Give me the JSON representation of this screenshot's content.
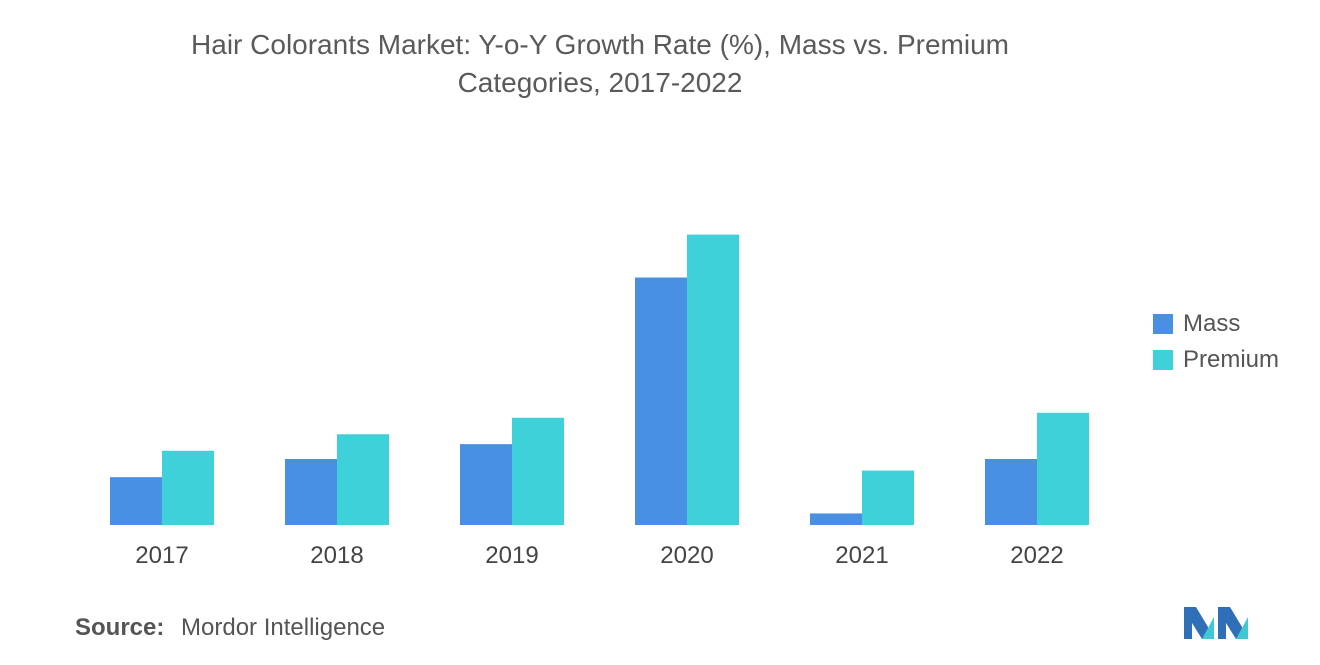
{
  "title_line1": "Hair Colorants Market: Y-o-Y Growth Rate (%), Mass vs. Premium",
  "title_line2": "Categories, 2017-2022",
  "source": {
    "label": "Source:",
    "value": "Mordor Intelligence"
  },
  "colors": {
    "mass": "#4a90e2",
    "premium": "#3fd1d9"
  },
  "chart_data": {
    "type": "bar",
    "categories": [
      "2017",
      "2018",
      "2019",
      "2020",
      "2021",
      "2022"
    ],
    "series": [
      {
        "name": "Mass",
        "values": [
          2.9,
          4.0,
          4.9,
          15.0,
          0.7,
          4.0
        ]
      },
      {
        "name": "Premium",
        "values": [
          4.5,
          5.5,
          6.5,
          17.6,
          3.3,
          6.8
        ]
      }
    ],
    "ylim": [
      0,
      20
    ],
    "grid": false,
    "legend_position": "right"
  }
}
